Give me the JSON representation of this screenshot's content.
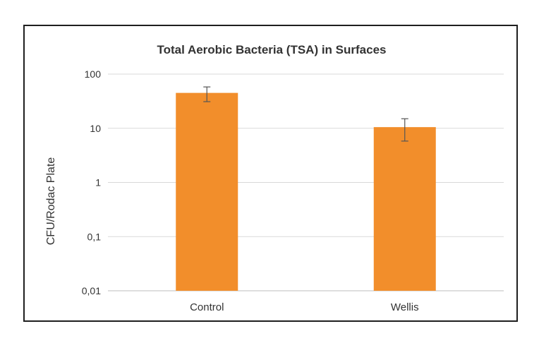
{
  "chart_data": {
    "type": "bar",
    "title": "Total Aerobic Bacteria (TSA) in Surfaces",
    "xlabel": "",
    "ylabel": "CFU/Rodac Plate",
    "y_scale": "log",
    "ylim": [
      0.01,
      100
    ],
    "y_ticks": [
      "0,01",
      "0,1",
      "1",
      "10",
      "100"
    ],
    "y_tick_values": [
      0.01,
      0.1,
      1,
      10,
      100
    ],
    "categories": [
      "Control",
      "Wellis"
    ],
    "values": [
      45,
      10.5
    ],
    "error_low": [
      31,
      5.8
    ],
    "error_high": [
      58,
      15
    ],
    "bar_color": "#f28e2b",
    "grid": true,
    "legend": "none"
  }
}
